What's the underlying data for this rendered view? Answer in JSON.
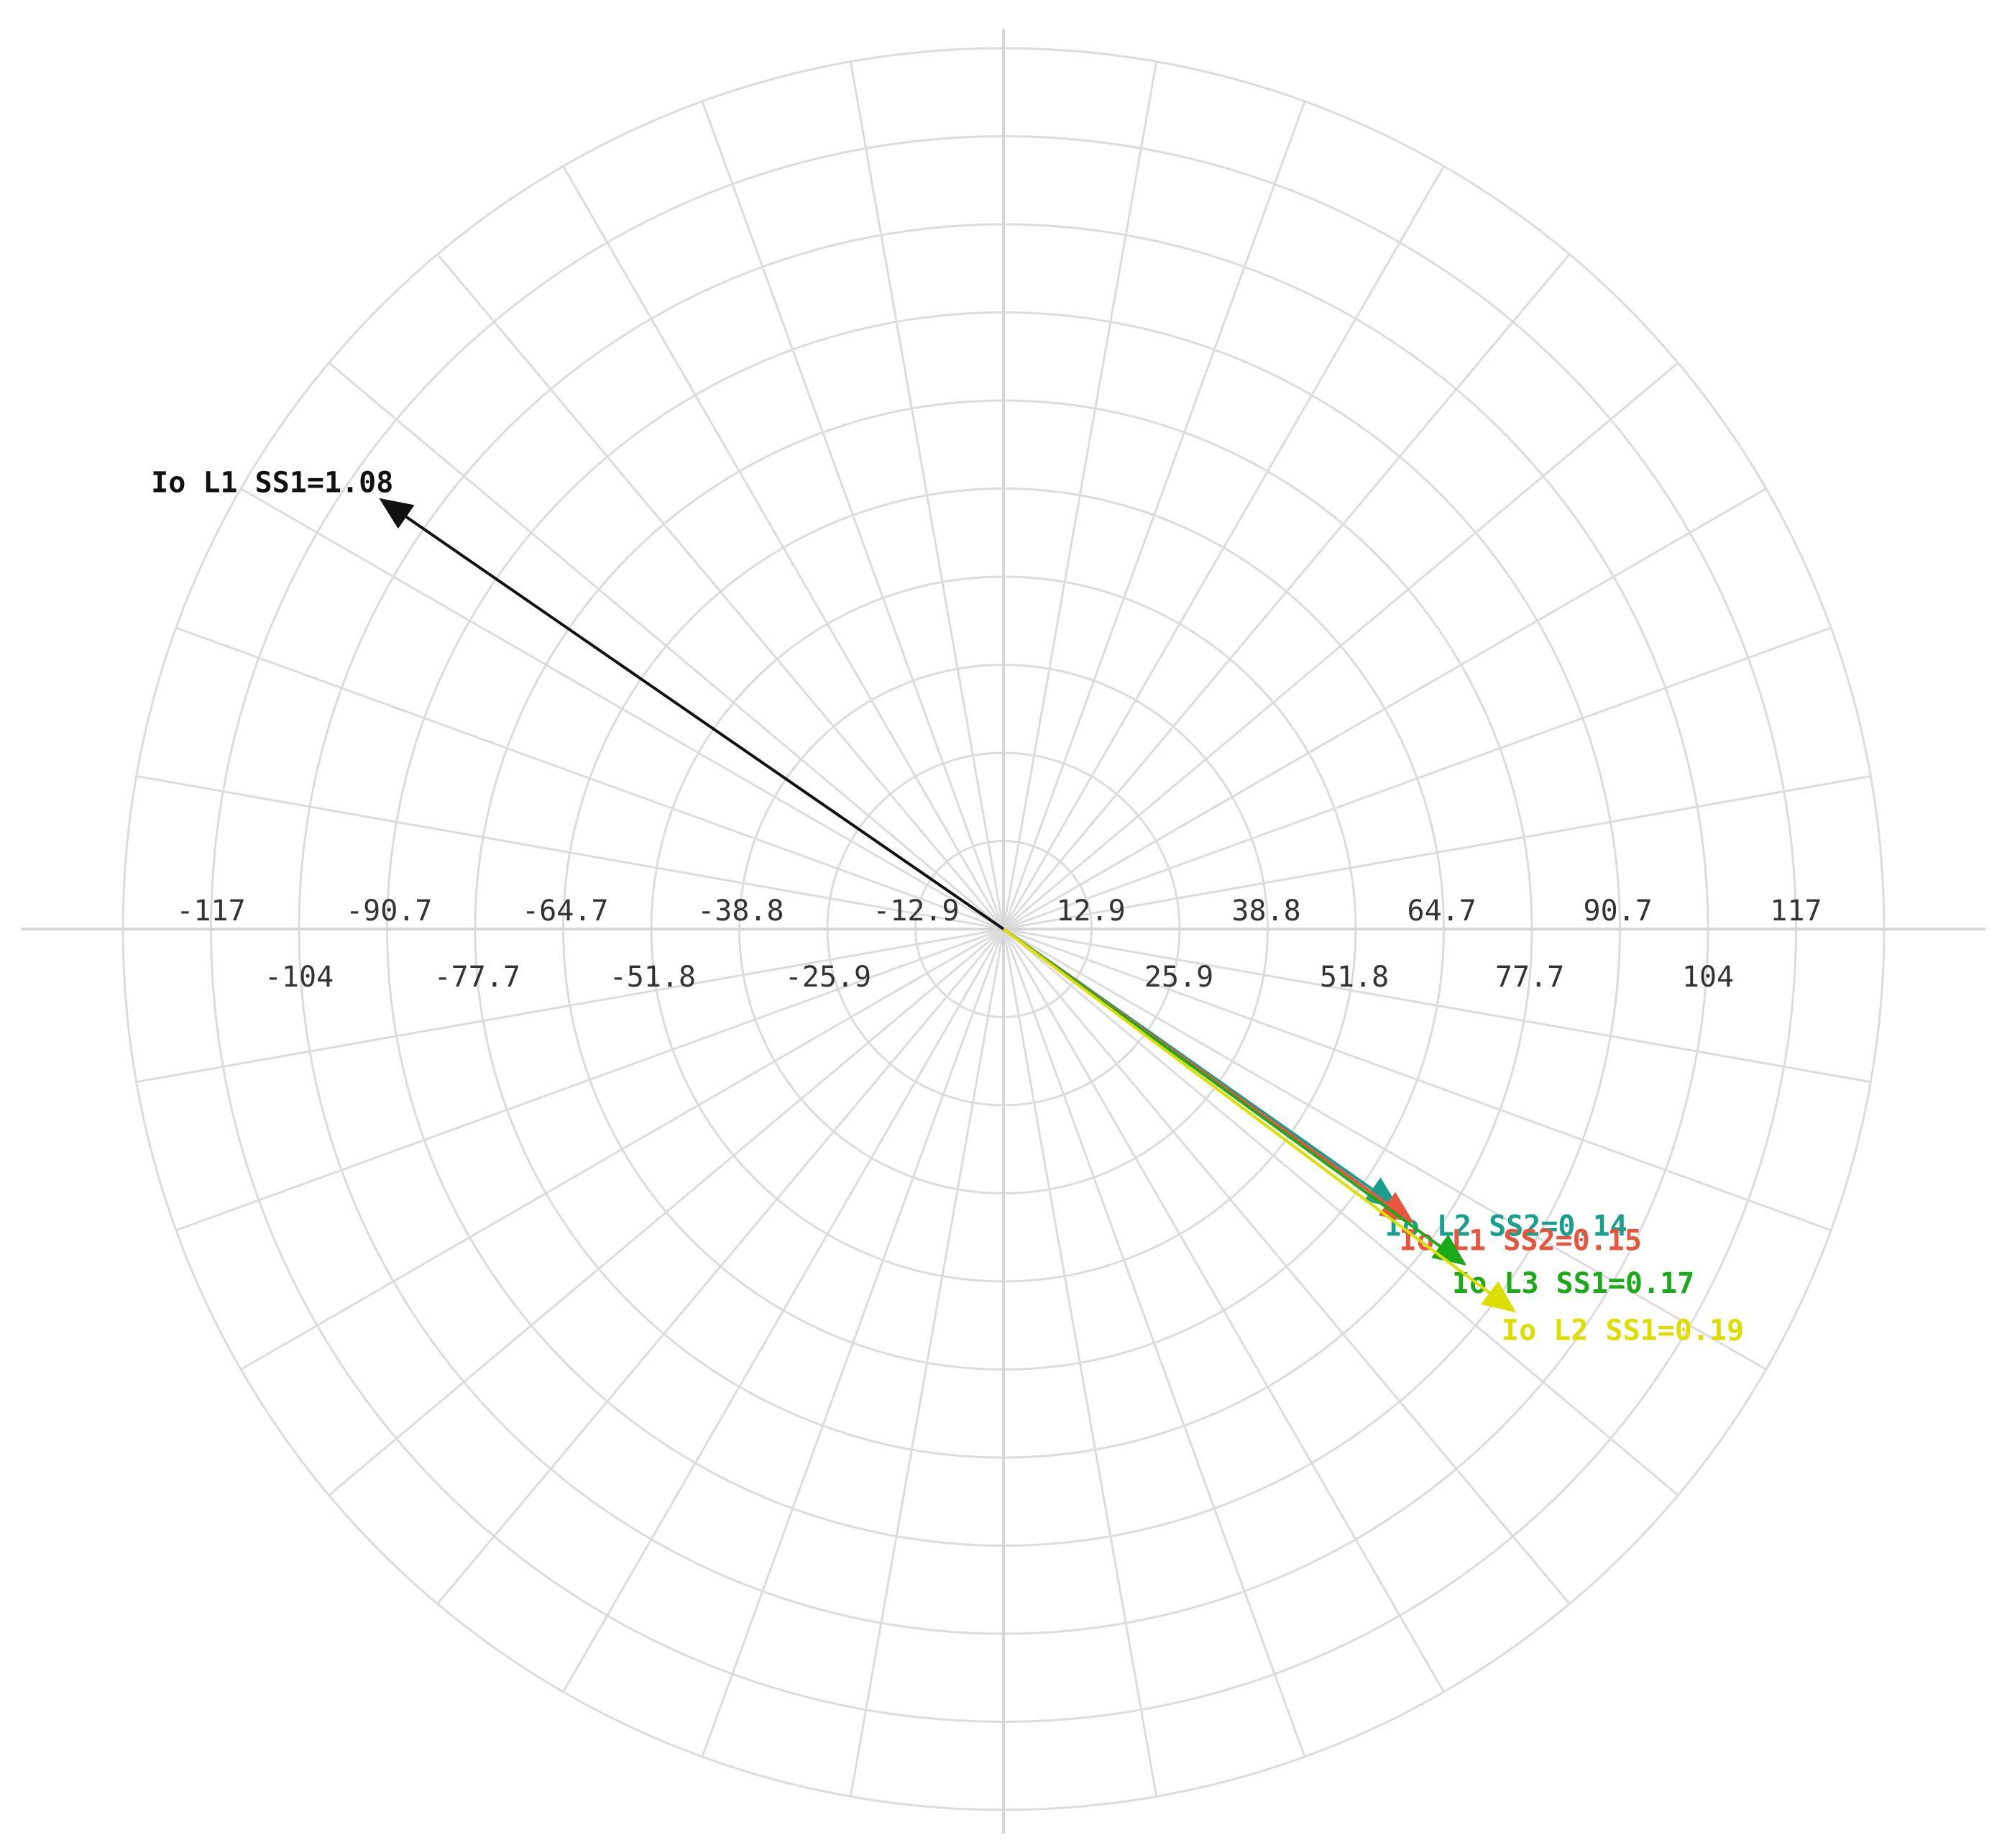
{
  "chart_data": {
    "type": "polar-phasor",
    "radius_max": 130,
    "rings": 10,
    "spokes": 36,
    "grid": true,
    "ticks_row1": [
      "-117",
      "-90.7",
      "-64.7",
      "-38.8",
      "-12.9",
      "12.9",
      "38.8",
      "64.7",
      "90.7",
      "117"
    ],
    "ticks_row1_values": [
      -117,
      -90.7,
      -64.7,
      -38.8,
      -12.9,
      12.9,
      38.8,
      64.7,
      90.7,
      117
    ],
    "ticks_row2": [
      "-104",
      "-77.7",
      "-51.8",
      "-25.9",
      "25.9",
      "51.8",
      "77.7",
      "104"
    ],
    "ticks_row2_values": [
      -104,
      -77.7,
      -51.8,
      -25.9,
      25.9,
      51.8,
      77.7,
      104
    ],
    "series": [
      {
        "name": "Io L1 SS1=1.08",
        "angle_deg": 145.4,
        "magnitude": 112,
        "color": "#111111"
      },
      {
        "name": "Io L2 SS2=0.14",
        "angle_deg": -35.2,
        "magnitude": 71.5,
        "color": "#1a9e8e"
      },
      {
        "name": "Io L1 SS2=0.15",
        "angle_deg": -35.6,
        "magnitude": 74.5,
        "color": "#e8553d"
      },
      {
        "name": "Io L3 SS1=0.17",
        "angle_deg": -36.0,
        "magnitude": 84.5,
        "color": "#1aaa1a"
      },
      {
        "name": "Io L2 SS1=0.19",
        "angle_deg": -36.8,
        "magnitude": 94.5,
        "color": "#dddd00"
      }
    ]
  }
}
